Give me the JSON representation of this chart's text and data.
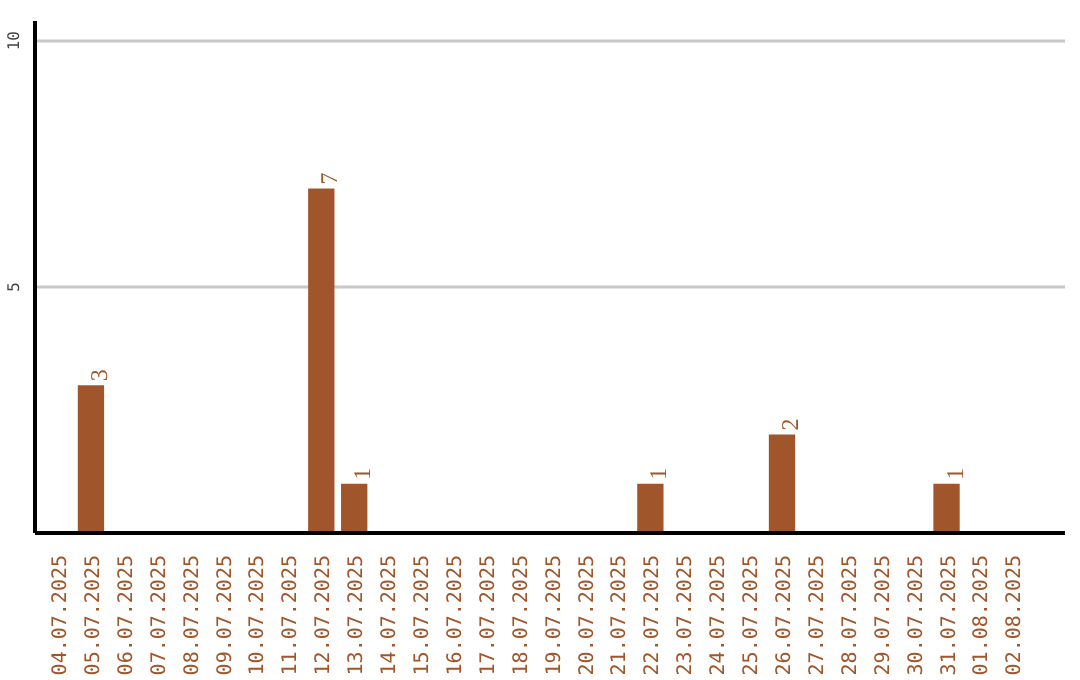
{
  "chart_data": {
    "type": "bar",
    "categories": [
      "04.07.2025",
      "05.07.2025",
      "06.07.2025",
      "07.07.2025",
      "08.07.2025",
      "09.07.2025",
      "10.07.2025",
      "11.07.2025",
      "12.07.2025",
      "13.07.2025",
      "14.07.2025",
      "15.07.2025",
      "16.07.2025",
      "17.07.2025",
      "18.07.2025",
      "19.07.2025",
      "20.07.2025",
      "21.07.2025",
      "22.07.2025",
      "23.07.2025",
      "24.07.2025",
      "25.07.2025",
      "26.07.2025",
      "27.07.2025",
      "28.07.2025",
      "29.07.2025",
      "30.07.2025",
      "31.07.2025",
      "01.08.2025",
      "02.08.2025"
    ],
    "values": [
      0,
      3,
      0,
      0,
      0,
      0,
      0,
      0,
      7,
      1,
      0,
      0,
      0,
      0,
      0,
      0,
      0,
      0,
      1,
      0,
      0,
      0,
      2,
      0,
      0,
      0,
      0,
      1,
      0,
      0
    ],
    "value_labels": [
      null,
      "3",
      null,
      null,
      null,
      null,
      null,
      null,
      "7",
      "1",
      null,
      null,
      null,
      null,
      null,
      null,
      null,
      null,
      "1",
      null,
      null,
      null,
      "2",
      null,
      null,
      null,
      null,
      "1",
      null,
      null
    ],
    "color": "#a0562a",
    "ylim": [
      0,
      10.4
    ],
    "yticks": [
      5,
      10
    ],
    "grid": "y"
  }
}
